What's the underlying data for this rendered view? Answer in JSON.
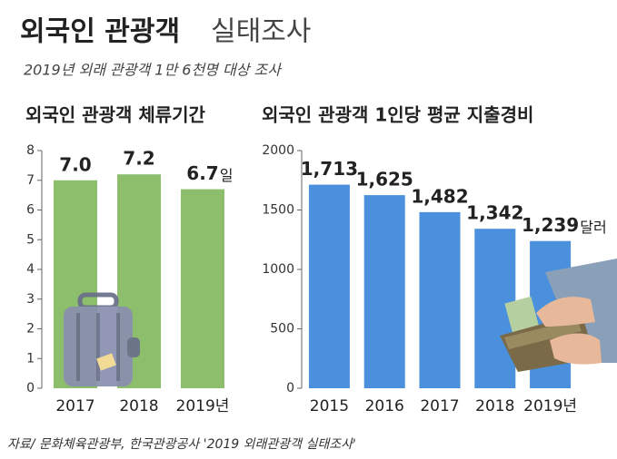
{
  "title": {
    "main": "외국인 관광객",
    "sub": "실태조사"
  },
  "subtitle": "2019년 외래 관광객 1만 6천명 대상 조사",
  "source": "자료/ 문화체육관광부, 한국관광공사 '2019 외래관광객 실태조사'",
  "chart_data": [
    {
      "type": "bar",
      "title": "외국인 관광객 체류기간",
      "categories": [
        "2017",
        "2018",
        "2019년"
      ],
      "values": [
        7.0,
        7.2,
        6.7
      ],
      "value_labels": [
        "7.0",
        "7.2",
        "6.7"
      ],
      "value_unit": "일",
      "color": "#8cbe6c",
      "ylim": [
        0,
        8
      ],
      "yticks": [
        0,
        1,
        2,
        3,
        4,
        5,
        6,
        7,
        8
      ]
    },
    {
      "type": "bar",
      "title": "외국인 관광객 1인당 평균 지출경비",
      "categories": [
        "2015",
        "2016",
        "2017",
        "2018",
        "2019년"
      ],
      "values": [
        1713,
        1625,
        1482,
        1342,
        1239
      ],
      "value_labels": [
        "1,713",
        "1,625",
        "1,482",
        "1,342",
        "1,239"
      ],
      "value_unit": "달러",
      "color": "#4a90dc",
      "ylim": [
        0,
        2000
      ],
      "yticks": [
        0,
        500,
        1000,
        1500,
        2000
      ]
    }
  ]
}
